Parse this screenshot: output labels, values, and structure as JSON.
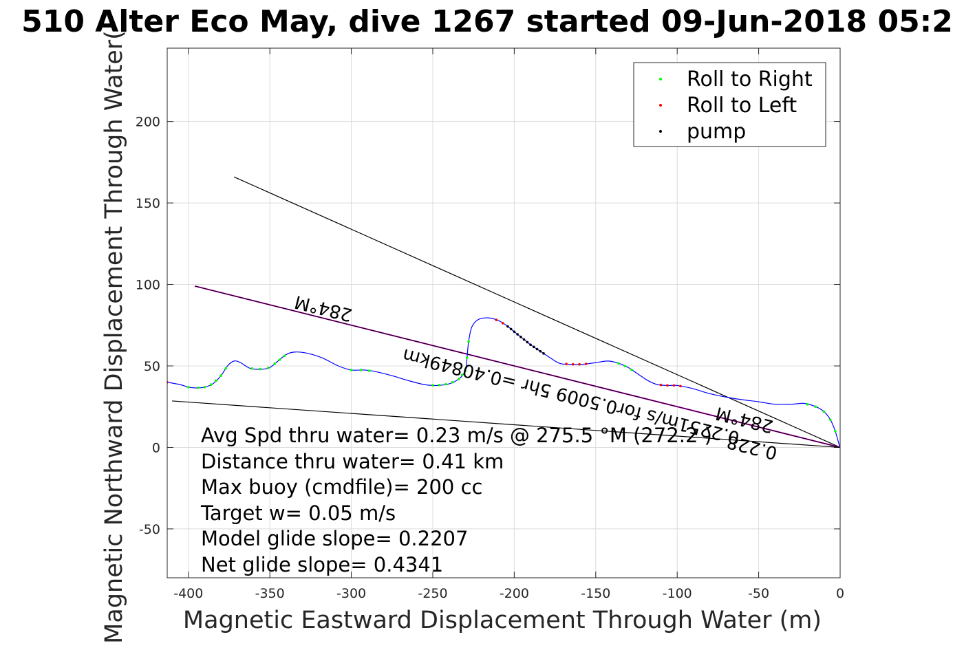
{
  "chart_data": {
    "type": "line",
    "title": "510 Alter Eco May, dive 1267 started 09-Jun-2018 05:2",
    "xlabel": "Magnetic Eastward Displacement Through Water (m)",
    "ylabel": "Magnetic Northward Displacement Through Water(",
    "xlim": [
      -413,
      0
    ],
    "ylim": [
      -80,
      245
    ],
    "xticks": [
      -400,
      -350,
      -300,
      -250,
      -200,
      -150,
      -100,
      -50,
      0
    ],
    "yticks": [
      -50,
      0,
      50,
      100,
      150,
      200
    ],
    "xtick_labels": [
      "-400",
      "-350",
      "-300",
      "-250",
      "-200",
      "-150",
      "-100",
      "-50",
      "0"
    ],
    "ytick_labels": [
      "-50",
      "0",
      "50",
      "100",
      "150",
      "200"
    ],
    "grid": true,
    "legend_position": "top-right",
    "legend": [
      {
        "label": "Roll to Right",
        "color": "#00ff00"
      },
      {
        "label": "Roll to Left",
        "color": "#ff0000"
      },
      {
        "label": "pump",
        "color": "#000000"
      }
    ],
    "track_color": "#0000ff",
    "track": [
      [
        -413,
        40
      ],
      [
        -405,
        38.5
      ],
      [
        -400,
        37
      ],
      [
        -395,
        36.5
      ],
      [
        -390,
        37
      ],
      [
        -385,
        39
      ],
      [
        -380,
        44
      ],
      [
        -376,
        50
      ],
      [
        -372,
        53
      ],
      [
        -368,
        52
      ],
      [
        -362,
        48.5
      ],
      [
        -355,
        48
      ],
      [
        -350,
        49
      ],
      [
        -345,
        53
      ],
      [
        -340,
        57
      ],
      [
        -335,
        58.5
      ],
      [
        -328,
        58
      ],
      [
        -318,
        55
      ],
      [
        -308,
        50
      ],
      [
        -300,
        47.5
      ],
      [
        -292,
        47.5
      ],
      [
        -285,
        46.5
      ],
      [
        -275,
        44
      ],
      [
        -265,
        41
      ],
      [
        -255,
        38.5
      ],
      [
        -248,
        38
      ],
      [
        -240,
        39
      ],
      [
        -234,
        42
      ],
      [
        -230,
        47
      ],
      [
        -229,
        55
      ],
      [
        -228,
        65
      ],
      [
        -226,
        74
      ],
      [
        -222,
        78.5
      ],
      [
        -216,
        79.5
      ],
      [
        -210,
        78
      ],
      [
        -205,
        75
      ],
      [
        -200,
        71
      ],
      [
        -195,
        67
      ],
      [
        -190,
        63
      ],
      [
        -184,
        59
      ],
      [
        -178,
        55
      ],
      [
        -172,
        51.5
      ],
      [
        -165,
        51
      ],
      [
        -158,
        51
      ],
      [
        -150,
        52
      ],
      [
        -143,
        53
      ],
      [
        -137,
        52
      ],
      [
        -130,
        49
      ],
      [
        -124,
        45
      ],
      [
        -118,
        41
      ],
      [
        -112,
        38.5
      ],
      [
        -105,
        38
      ],
      [
        -100,
        38
      ],
      [
        -90,
        36
      ],
      [
        -80,
        33
      ],
      [
        -65,
        30
      ],
      [
        -50,
        28
      ],
      [
        -40,
        26.5
      ],
      [
        -30,
        26.5
      ],
      [
        -22,
        27
      ],
      [
        -15,
        25
      ],
      [
        -10,
        22
      ],
      [
        -6,
        17
      ],
      [
        -3,
        10
      ],
      [
        -1,
        3
      ],
      [
        0,
        0
      ]
    ],
    "roll_right_x": [
      -400,
      -394,
      -390,
      -386,
      -383,
      -380,
      -377,
      -361,
      -356,
      -351,
      -347,
      -344,
      -341,
      -300,
      -294,
      -289,
      -250,
      -246,
      -242,
      -238,
      -234,
      -232,
      -230,
      -229,
      -228,
      -136,
      -132,
      -128,
      -20,
      -15,
      -10,
      -6,
      -3
    ],
    "roll_left_x": [
      -413,
      -211,
      -207,
      -168,
      -164,
      -160,
      -156,
      -110,
      -106,
      -102,
      -98
    ],
    "pump_x": [
      -204,
      -202,
      -200,
      -198,
      -196,
      -194,
      -192,
      -190,
      -188,
      -186,
      -184,
      -182
    ],
    "lines": [
      {
        "x": [
          -372,
          0
        ],
        "y": [
          166,
          0
        ],
        "color": "#000000"
      },
      {
        "x": [
          -396,
          0
        ],
        "y": [
          99,
          0
        ],
        "color": "#ff00ff"
      },
      {
        "x": [
          -396,
          0
        ],
        "y": [
          99,
          0
        ],
        "color": "#000000"
      },
      {
        "x": [
          -410,
          0
        ],
        "y": [
          28.5,
          0
        ],
        "color": "#000000"
      }
    ],
    "rotated_labels": [
      {
        "text": "284°M"
      },
      {
        "text": "0.2251m/s for0.5009 5hr =0.40849km"
      },
      {
        "text": "284°M"
      },
      {
        "text": "0.228"
      }
    ],
    "annotations": [
      "Avg Spd thru water=  0.23 m/s @ 275.5 °M (272.2 )",
      "Distance thru water=  0.41 km",
      "Max buoy (cmdfile)= 200 cc",
      "Target w= 0.05 m/s",
      "Model glide slope= 0.2207",
      "Net glide slope= 0.4341"
    ]
  }
}
